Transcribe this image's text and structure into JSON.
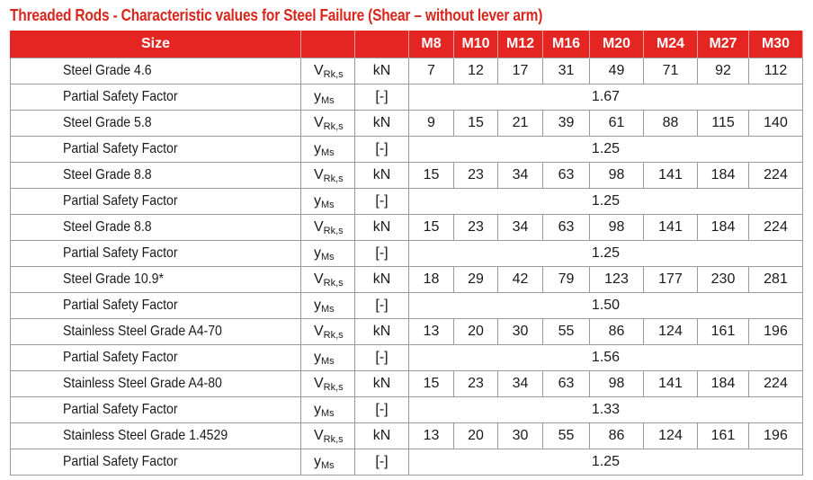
{
  "title": "Threaded Rods - Characteristic values for Steel Failure (Shear – without lever arm)",
  "header": {
    "size_label": "Size",
    "sizes": [
      "M8",
      "M10",
      "M12",
      "M16",
      "M20",
      "M24",
      "M27",
      "M30"
    ]
  },
  "rows": [
    {
      "label": "Steel Grade 4.6",
      "sym": "V",
      "sub": "Rk,s",
      "unit": "kN",
      "values": [
        "7",
        "12",
        "17",
        "31",
        "49",
        "71",
        "92",
        "112"
      ]
    },
    {
      "label": "Partial Safety Factor",
      "sym": "y",
      "sub": "Ms",
      "unit": "[-]",
      "span_value": "1.67"
    },
    {
      "label": "Steel Grade 5.8",
      "sym": "V",
      "sub": "Rk,s",
      "unit": "kN",
      "values": [
        "9",
        "15",
        "21",
        "39",
        "61",
        "88",
        "115",
        "140"
      ]
    },
    {
      "label": "Partial Safety Factor",
      "sym": "y",
      "sub": "Ms",
      "unit": "[-]",
      "span_value": "1.25"
    },
    {
      "label": "Steel Grade 8.8",
      "sym": "V",
      "sub": "Rk,s",
      "unit": "kN",
      "values": [
        "15",
        "23",
        "34",
        "63",
        "98",
        "141",
        "184",
        "224"
      ]
    },
    {
      "label": "Partial Safety Factor",
      "sym": "y",
      "sub": "Ms",
      "unit": "[-]",
      "span_value": "1.25"
    },
    {
      "label": "Steel Grade 8.8",
      "sym": "V",
      "sub": "Rk,s",
      "unit": "kN",
      "values": [
        "15",
        "23",
        "34",
        "63",
        "98",
        "141",
        "184",
        "224"
      ]
    },
    {
      "label": "Partial Safety Factor",
      "sym": "y",
      "sub": "Ms",
      "unit": "[-]",
      "span_value": "1.25"
    },
    {
      "label": "Steel Grade 10.9*",
      "sym": "V",
      "sub": "Rk,s",
      "unit": "kN",
      "values": [
        "18",
        "29",
        "42",
        "79",
        "123",
        "177",
        "230",
        "281"
      ]
    },
    {
      "label": "Partial Safety Factor",
      "sym": "y",
      "sub": "Ms",
      "unit": "[-]",
      "span_value": "1.50"
    },
    {
      "label": "Stainless Steel Grade A4-70",
      "sym": "V",
      "sub": "Rk,s",
      "unit": "kN",
      "values": [
        "13",
        "20",
        "30",
        "55",
        "86",
        "124",
        "161",
        "196"
      ]
    },
    {
      "label": "Partial Safety Factor",
      "sym": "y",
      "sub": "Ms",
      "unit": "[-]",
      "span_value": "1.56"
    },
    {
      "label": "Stainless Steel Grade A4-80",
      "sym": "V",
      "sub": "Rk,s",
      "unit": "kN",
      "values": [
        "15",
        "23",
        "34",
        "63",
        "98",
        "141",
        "184",
        "224"
      ]
    },
    {
      "label": "Partial Safety Factor",
      "sym": "y",
      "sub": "Ms",
      "unit": "[-]",
      "span_value": "1.33"
    },
    {
      "label": "Stainless Steel Grade 1.4529",
      "sym": "V",
      "sub": "Rk,s",
      "unit": "kN",
      "values": [
        "13",
        "20",
        "30",
        "55",
        "86",
        "124",
        "161",
        "196"
      ]
    },
    {
      "label": "Partial Safety Factor",
      "sym": "y",
      "sub": "Ms",
      "unit": "[-]",
      "span_value": "1.25"
    }
  ],
  "colors": {
    "title": "#d9261c",
    "header_bg": "#e52521",
    "header_text": "#ffffff",
    "grid": "#9a9a9a"
  }
}
